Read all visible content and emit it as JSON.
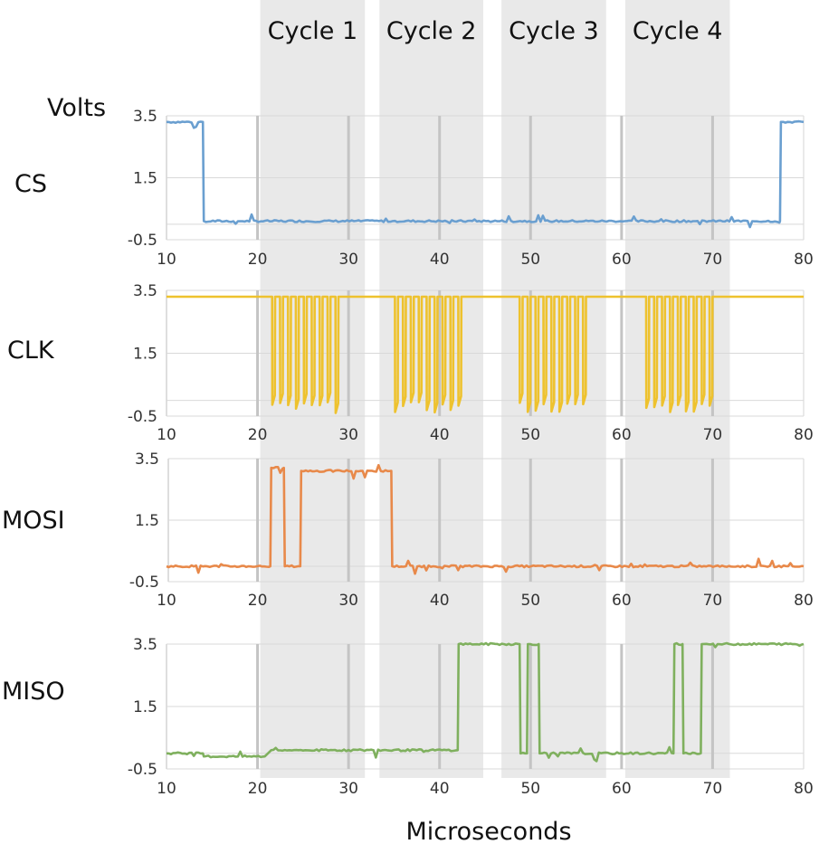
{
  "chart_data": {
    "type": "line",
    "xlabel": "Microseconds",
    "ylabel": "Volts",
    "xlim": [
      10,
      80
    ],
    "x_ticks": [
      "10",
      "20",
      "30",
      "40",
      "50",
      "60",
      "70",
      "80"
    ],
    "y_ticks": [
      "3.5",
      "1.5",
      "-0.5"
    ],
    "ylim": [
      -0.5,
      3.5
    ],
    "grid": true,
    "cycles": [
      {
        "label": "Cycle 1",
        "start": 20.3,
        "end": 31.8
      },
      {
        "label": "Cycle 2",
        "start": 33.4,
        "end": 44.8
      },
      {
        "label": "Cycle 3",
        "start": 46.8,
        "end": 58.3
      },
      {
        "label": "Cycle 4",
        "start": 60.4,
        "end": 71.9
      }
    ],
    "series": [
      {
        "name": "CS",
        "color": "#6a9fd0",
        "x": [
          10,
          14,
          14.1,
          77.4,
          77.5,
          80
        ],
        "y": [
          3.3,
          3.3,
          0.1,
          0.1,
          3.3,
          3.3
        ]
      },
      {
        "name": "CLK",
        "color": "#eec22e",
        "x": [
          10,
          21.5,
          21.6,
          29.4,
          29.5,
          35,
          35.1,
          42.8,
          42.9,
          48.7,
          48.8,
          56.6,
          56.7,
          62.6,
          62.7,
          70.4,
          70.5,
          80
        ],
        "y": [
          3.3,
          3.3,
          0.1,
          0.1,
          3.3,
          3.3,
          0.1,
          0.1,
          3.3,
          3.3,
          0.1,
          0.1,
          3.3,
          3.3,
          0.1,
          0.1,
          3.3,
          3.3
        ],
        "burst_periods_us": 0.87
      },
      {
        "name": "MOSI",
        "color": "#e8894a",
        "x": [
          10,
          21.4,
          21.5,
          22.9,
          23,
          24.7,
          24.8,
          34.7,
          34.8,
          80
        ],
        "y": [
          0,
          0,
          3.2,
          3.2,
          0,
          0,
          3.1,
          3.1,
          0,
          0
        ]
      },
      {
        "name": "MISO",
        "color": "#7fb05e",
        "x": [
          10,
          14,
          14.1,
          20.8,
          21.5,
          23.5,
          24.5,
          42,
          42.1,
          48.8,
          48.9,
          49.6,
          49.7,
          50.9,
          51,
          65.7,
          65.8,
          66.7,
          66.8,
          68.7,
          68.8,
          80
        ],
        "y": [
          0,
          0,
          -0.1,
          -0.1,
          0.1,
          0.1,
          0.1,
          0.1,
          3.5,
          3.5,
          0,
          0,
          3.5,
          3.5,
          0,
          0,
          3.5,
          3.5,
          0,
          0,
          3.5,
          3.5
        ]
      }
    ]
  }
}
